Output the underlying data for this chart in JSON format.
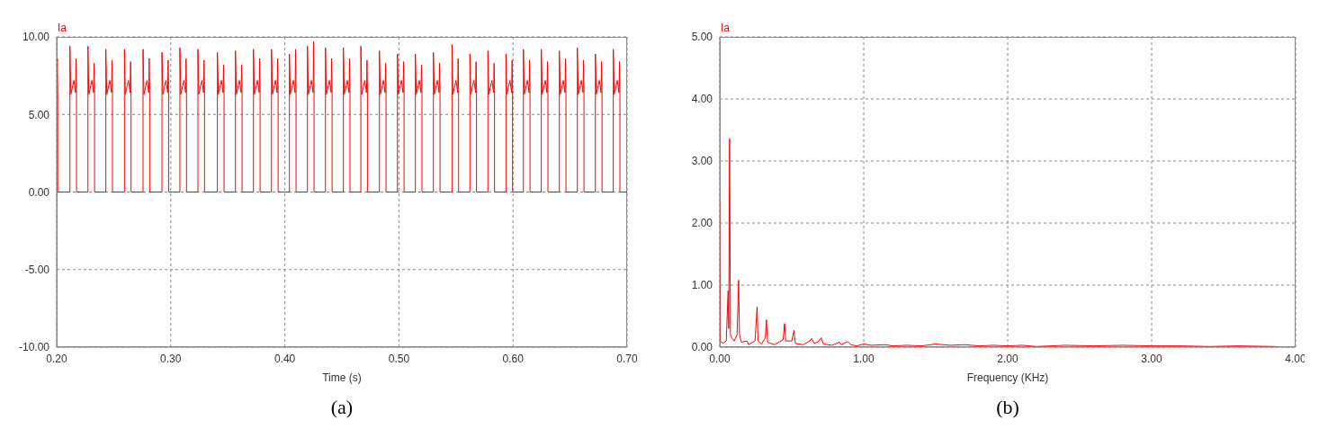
{
  "chart_data": [
    {
      "type": "line",
      "ylabel": "Ia",
      "xlabel": "Time (s)",
      "annotations": [
        "(a)"
      ],
      "grid": true,
      "xlim": [
        0.2,
        0.7
      ],
      "ylim": [
        -10,
        10
      ],
      "xticks": [
        {
          "value": 0.2,
          "label": "0.20"
        },
        {
          "value": 0.3,
          "label": "0.30"
        },
        {
          "value": 0.4,
          "label": "0.40"
        },
        {
          "value": 0.5,
          "label": "0.50"
        },
        {
          "value": 0.6,
          "label": "0.60"
        },
        {
          "value": 0.7,
          "label": "0.70"
        }
      ],
      "yticks": [
        {
          "value": -10,
          "label": "-10.00"
        },
        {
          "value": -5,
          "label": "-5.00"
        },
        {
          "value": 0,
          "label": "0.00"
        },
        {
          "value": 5,
          "label": "5.00"
        },
        {
          "value": 10,
          "label": "10.00"
        }
      ],
      "x": [
        0.2,
        0.2006,
        0.2009,
        0.2009,
        0.2116,
        0.2116,
        0.2124,
        0.2151,
        0.2166,
        0.217,
        0.2174,
        0.2174,
        0.2274,
        0.2274,
        0.2282,
        0.2309,
        0.2324,
        0.2328,
        0.2332,
        0.2332,
        0.2431,
        0.2431,
        0.2439,
        0.2466,
        0.2481,
        0.2485,
        0.2489,
        0.2489,
        0.2594,
        0.2594,
        0.2602,
        0.2629,
        0.2644,
        0.2648,
        0.2652,
        0.2652,
        0.2757,
        0.2757,
        0.2765,
        0.2792,
        0.2807,
        0.2811,
        0.2815,
        0.2815,
        0.2923,
        0.2923,
        0.2931,
        0.2958,
        0.2973,
        0.2977,
        0.2981,
        0.2981,
        0.308,
        0.308,
        0.3088,
        0.3115,
        0.313,
        0.3134,
        0.3138,
        0.3138,
        0.3238,
        0.3238,
        0.3246,
        0.3273,
        0.3288,
        0.3292,
        0.3296,
        0.3296,
        0.3409,
        0.3409,
        0.3417,
        0.3444,
        0.3459,
        0.3463,
        0.3467,
        0.3467,
        0.3567,
        0.3567,
        0.3575,
        0.3602,
        0.3617,
        0.3621,
        0.3625,
        0.3625,
        0.3725,
        0.3725,
        0.3733,
        0.376,
        0.3775,
        0.3779,
        0.3783,
        0.3783,
        0.3883,
        0.3883,
        0.3891,
        0.3918,
        0.3933,
        0.3937,
        0.3941,
        0.3941,
        0.404,
        0.404,
        0.4048,
        0.4075,
        0.409,
        0.4094,
        0.4098,
        0.4098,
        0.4198,
        0.4198,
        0.4206,
        0.4233,
        0.4248,
        0.4252,
        0.4256,
        0.4256,
        0.4356,
        0.4356,
        0.4364,
        0.4391,
        0.4406,
        0.441,
        0.4414,
        0.4414,
        0.4513,
        0.4513,
        0.4521,
        0.4548,
        0.4563,
        0.4567,
        0.4571,
        0.4571,
        0.4666,
        0.4666,
        0.4674,
        0.4701,
        0.4716,
        0.472,
        0.4724,
        0.4724,
        0.4829,
        0.4829,
        0.4837,
        0.4864,
        0.4879,
        0.4883,
        0.4887,
        0.4887,
        0.4987,
        0.4987,
        0.4995,
        0.5022,
        0.5037,
        0.5041,
        0.5045,
        0.5045,
        0.5144,
        0.5144,
        0.5152,
        0.5179,
        0.5194,
        0.5198,
        0.5202,
        0.5202,
        0.5302,
        0.5302,
        0.531,
        0.5337,
        0.5352,
        0.5356,
        0.536,
        0.536,
        0.5465,
        0.5465,
        0.5473,
        0.55,
        0.5515,
        0.5519,
        0.5523,
        0.5523,
        0.5622,
        0.5622,
        0.563,
        0.5657,
        0.5672,
        0.5676,
        0.568,
        0.568,
        0.578,
        0.578,
        0.5788,
        0.5815,
        0.583,
        0.5834,
        0.5838,
        0.5838,
        0.5938,
        0.5938,
        0.5946,
        0.5973,
        0.5988,
        0.5992,
        0.5996,
        0.5996,
        0.6091,
        0.6091,
        0.6099,
        0.6126,
        0.6141,
        0.6145,
        0.6149,
        0.6149,
        0.6248,
        0.6248,
        0.6256,
        0.6283,
        0.6298,
        0.6302,
        0.6306,
        0.6306,
        0.6406,
        0.6406,
        0.6414,
        0.6441,
        0.6456,
        0.646,
        0.6464,
        0.6464,
        0.6564,
        0.6564,
        0.6572,
        0.6599,
        0.6614,
        0.6618,
        0.6622,
        0.6622,
        0.6722,
        0.6722,
        0.673,
        0.6757,
        0.6772,
        0.6776,
        0.678,
        0.678,
        0.6879,
        0.6879,
        0.6887,
        0.6914,
        0.6929,
        0.6933,
        0.6937,
        0.6937,
        0.7
      ],
      "series": [
        {
          "color": "#ff0000",
          "values": [
            6.8,
            8.6,
            6.5,
            0,
            0,
            9.4,
            6.3,
            7.2,
            6.4,
            8.6,
            6.6,
            0,
            0,
            9.4,
            6.3,
            7.2,
            6.4,
            8.3,
            6.6,
            0,
            0,
            9.2,
            6.3,
            7.2,
            6.4,
            8.5,
            6.6,
            0,
            0,
            9.2,
            6.3,
            7.2,
            6.4,
            8.4,
            6.6,
            0,
            0,
            9.2,
            6.3,
            7.2,
            6.4,
            8.6,
            6.6,
            0,
            0,
            9.0,
            6.3,
            7.2,
            6.4,
            8.5,
            6.6,
            0,
            0,
            9.3,
            6.3,
            7.2,
            6.4,
            8.6,
            6.6,
            0,
            0,
            9.2,
            6.3,
            7.2,
            6.4,
            8.5,
            6.6,
            0,
            0,
            9.0,
            6.3,
            7.2,
            6.4,
            8.2,
            6.6,
            0,
            0,
            9.1,
            6.3,
            7.2,
            6.4,
            8.2,
            6.6,
            0,
            0,
            9.2,
            6.3,
            7.2,
            6.4,
            8.6,
            6.6,
            0,
            0,
            9.2,
            6.3,
            7.2,
            6.4,
            8.6,
            6.6,
            0,
            0,
            8.9,
            6.3,
            7.2,
            6.4,
            9.2,
            6.6,
            0,
            0,
            9.4,
            6.3,
            7.2,
            6.4,
            9.7,
            6.6,
            0,
            0,
            9.3,
            6.3,
            7.2,
            6.4,
            8.6,
            6.6,
            0,
            0,
            9.3,
            6.3,
            7.2,
            6.4,
            8.6,
            6.6,
            0,
            0,
            9.4,
            6.3,
            7.2,
            6.4,
            8.5,
            6.6,
            0,
            0,
            9.1,
            6.3,
            7.2,
            6.4,
            8.3,
            6.6,
            0,
            0,
            8.9,
            6.3,
            7.2,
            6.4,
            8.4,
            6.6,
            0,
            0,
            8.9,
            6.3,
            7.2,
            6.4,
            8.2,
            6.6,
            0,
            0,
            9.0,
            6.3,
            7.2,
            6.4,
            8.3,
            6.6,
            0,
            0,
            9.5,
            6.3,
            7.2,
            6.4,
            8.6,
            6.6,
            0,
            0,
            8.9,
            6.3,
            7.2,
            6.4,
            8.4,
            6.6,
            0,
            0,
            9.1,
            6.3,
            7.2,
            6.4,
            8.3,
            6.6,
            0,
            0,
            8.9,
            6.3,
            7.2,
            6.4,
            8.5,
            6.6,
            0,
            0,
            9.2,
            6.3,
            7.2,
            6.4,
            8.5,
            6.6,
            0,
            0,
            9.2,
            6.3,
            7.2,
            6.4,
            8.4,
            6.6,
            0,
            0,
            9.1,
            6.3,
            7.2,
            6.4,
            8.6,
            6.6,
            0,
            0,
            9.3,
            6.3,
            7.2,
            6.4,
            8.5,
            6.6,
            0,
            0,
            8.9,
            6.3,
            7.2,
            6.4,
            8.4,
            6.6,
            0,
            0,
            9.2,
            6.3,
            7.2,
            6.4,
            8.4,
            6.6,
            0,
            0
          ]
        }
      ]
    },
    {
      "type": "line",
      "ylabel": "Ia",
      "xlabel": "Frequency (KHz)",
      "annotations": [
        "(b)"
      ],
      "grid": true,
      "xlim": [
        0,
        4
      ],
      "ylim": [
        0,
        5
      ],
      "xticks": [
        {
          "value": 0,
          "label": "0.00"
        },
        {
          "value": 1,
          "label": "1.00"
        },
        {
          "value": 2,
          "label": "2.00"
        },
        {
          "value": 3,
          "label": "3.00"
        },
        {
          "value": 4,
          "label": "4.00"
        }
      ],
      "yticks": [
        {
          "value": 0,
          "label": "0.00"
        },
        {
          "value": 1,
          "label": "1.00"
        },
        {
          "value": 2,
          "label": "2.00"
        },
        {
          "value": 3,
          "label": "3.00"
        },
        {
          "value": 4,
          "label": "4.00"
        },
        {
          "value": 5,
          "label": "5.00"
        }
      ],
      "x": [
        0,
        0.004,
        0.02,
        0.045,
        0.058,
        0.062,
        0.068,
        0.074,
        0.083,
        0.1,
        0.12,
        0.127,
        0.131,
        0.137,
        0.15,
        0.19,
        0.2,
        0.245,
        0.259,
        0.266,
        0.29,
        0.316,
        0.324,
        0.332,
        0.38,
        0.44,
        0.45,
        0.458,
        0.5,
        0.515,
        0.525,
        0.58,
        0.625,
        0.639,
        0.655,
        0.68,
        0.705,
        0.72,
        0.78,
        0.83,
        0.845,
        0.87,
        0.89,
        0.91,
        0.95,
        1.0,
        1.05,
        1.15,
        1.2,
        1.3,
        1.4,
        1.5,
        1.6,
        1.7,
        1.8,
        1.9,
        2.0,
        2.1,
        2.2,
        2.4,
        2.6,
        2.8,
        3.0,
        3.2,
        3.4,
        3.6,
        3.86
      ],
      "series": [
        {
          "color": "#ff0000",
          "values": [
            2.36,
            0.1,
            0.06,
            0.1,
            0.91,
            0.3,
            3.36,
            0.2,
            0.15,
            0.1,
            0.2,
            0.75,
            1.08,
            0.2,
            0.08,
            0.1,
            0.04,
            0.1,
            0.65,
            0.1,
            0.05,
            0.15,
            0.44,
            0.08,
            0.04,
            0.12,
            0.38,
            0.1,
            0.1,
            0.27,
            0.06,
            0.04,
            0.1,
            0.14,
            0.06,
            0.08,
            0.15,
            0.05,
            0.03,
            0.08,
            0.04,
            0.07,
            0.09,
            0.04,
            0.02,
            0.05,
            0.03,
            0.04,
            0.02,
            0.03,
            0.02,
            0.05,
            0.03,
            0.04,
            0.02,
            0.03,
            0.02,
            0.03,
            0.01,
            0.03,
            0.02,
            0.03,
            0.02,
            0.02,
            0.01,
            0.02,
            0.01
          ]
        }
      ]
    }
  ]
}
